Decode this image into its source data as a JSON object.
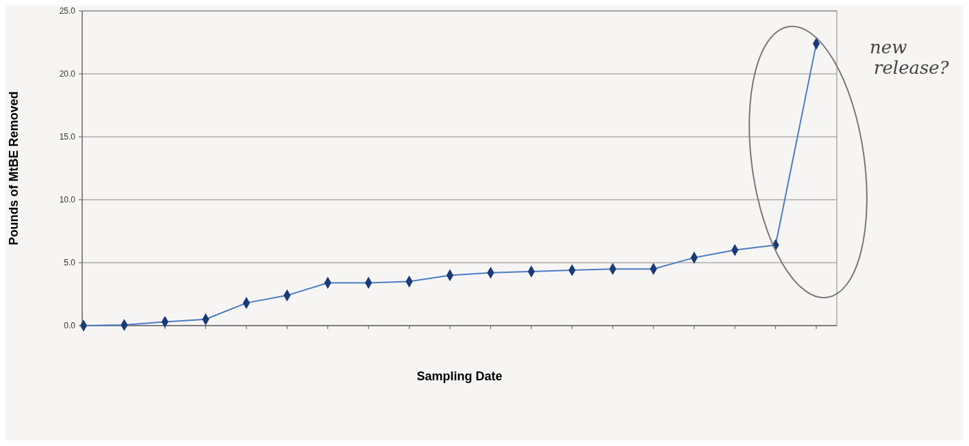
{
  "chart_data": {
    "type": "line",
    "xlabel": "Sampling Date",
    "ylabel": "Pounds of MtBE Removed",
    "categories": [
      null,
      null,
      null,
      null,
      null,
      null,
      null,
      null,
      null,
      null,
      null,
      null,
      null,
      null,
      null,
      null,
      null,
      null,
      null
    ],
    "series": [
      {
        "color": "#4a7cc4",
        "values": [
          0.0,
          0.05,
          0.3,
          0.5,
          1.8,
          2.4,
          3.4,
          3.4,
          3.5,
          4.0,
          4.2,
          4.3,
          4.4,
          4.5,
          4.5,
          5.4,
          6.0,
          6.4,
          22.4
        ]
      }
    ],
    "ylim": [
      0,
      25
    ],
    "yticks": [
      {
        "value": 0,
        "label": "0.0"
      },
      {
        "value": 5,
        "label": "5.0"
      },
      {
        "value": 10,
        "label": "10.0"
      },
      {
        "value": 15,
        "label": "15.0"
      },
      {
        "value": 20,
        "label": "20.0"
      },
      {
        "value": 25,
        "label": "25.0"
      }
    ],
    "grid": "y",
    "marker": "diamond",
    "line_style": "solid",
    "annotations": [
      "new release?"
    ]
  }
}
